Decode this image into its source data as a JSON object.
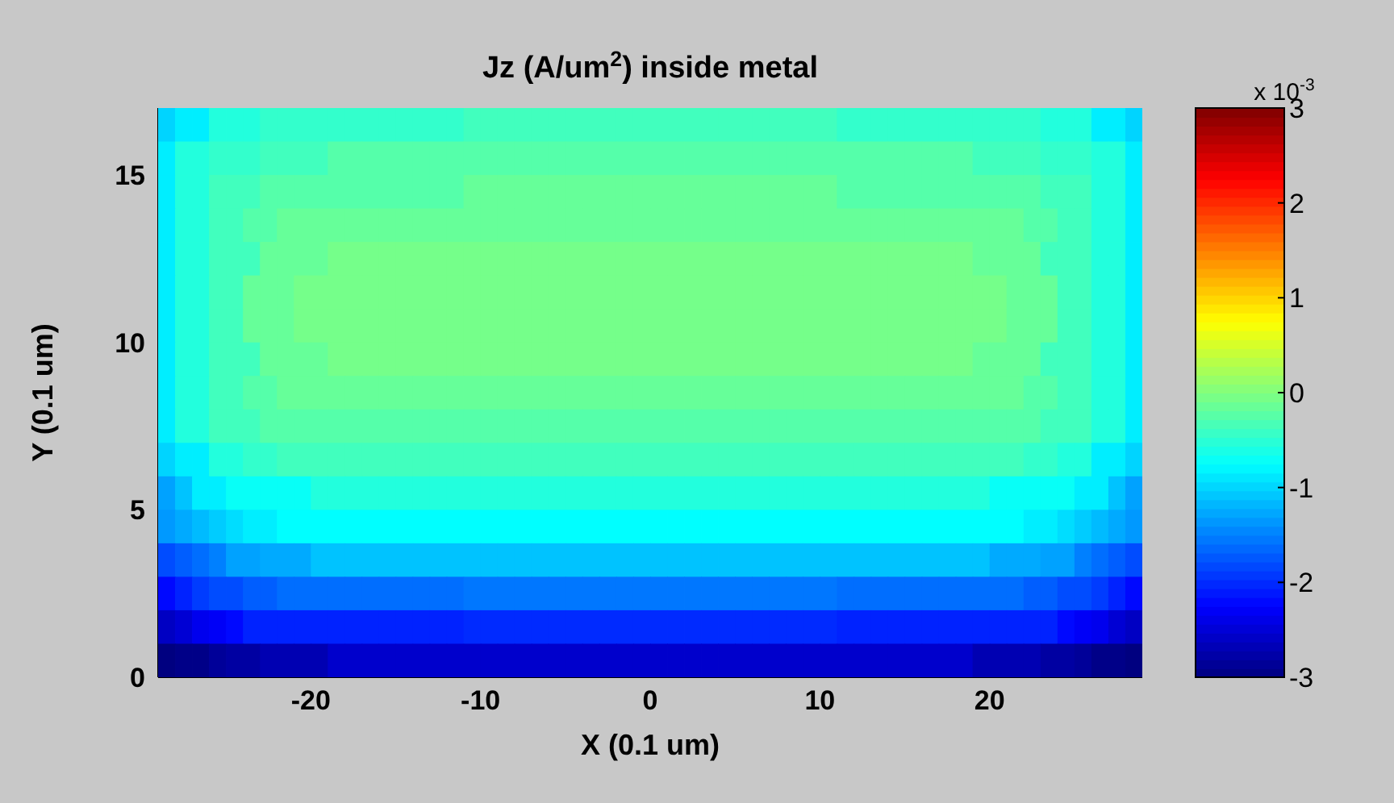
{
  "chart_data": {
    "type": "heatmap",
    "title": "Jz (A/um$^{2}$) inside metal",
    "xlabel": "X (0.1 um)",
    "ylabel": "Y (0.1 um)",
    "xlim": [
      -29,
      29
    ],
    "ylim": [
      0,
      17
    ],
    "xticks": [
      -20,
      -10,
      0,
      10,
      20
    ],
    "yticks": [
      0,
      5,
      10,
      15
    ],
    "clim": [
      -3,
      3
    ],
    "cticks": [
      -3,
      -2,
      -1,
      0,
      1,
      2,
      3
    ],
    "annotations": [
      "x 10$^{-3}$"
    ],
    "cells": [
      [
        -1,
        -0.85,
        -0.85,
        -0.55,
        -0.55,
        -0.55,
        -0.45,
        -0.45,
        -0.45,
        -0.45,
        -0.45,
        -0.45,
        -0.45,
        -0.45,
        -0.45,
        -0.45,
        -0.45,
        -0.45,
        -0.37,
        -0.37,
        -0.37,
        -0.37,
        -0.37,
        -0.37,
        -0.37,
        -0.37,
        -0.37,
        -0.37,
        -0.37,
        -0.37,
        -0.37,
        -0.37,
        -0.37,
        -0.37,
        -0.37,
        -0.37,
        -0.37,
        -0.37,
        -0.37,
        -0.37,
        -0.45,
        -0.45,
        -0.45,
        -0.45,
        -0.45,
        -0.45,
        -0.45,
        -0.45,
        -0.45,
        -0.45,
        -0.45,
        -0.45,
        -0.55,
        -0.55,
        -0.55,
        -0.85,
        -0.85,
        -1
      ],
      [
        -0.85,
        -0.55,
        -0.55,
        -0.45,
        -0.45,
        -0.45,
        -0.37,
        -0.37,
        -0.37,
        -0.37,
        -0.25,
        -0.25,
        -0.25,
        -0.25,
        -0.25,
        -0.25,
        -0.25,
        -0.25,
        -0.25,
        -0.25,
        -0.25,
        -0.25,
        -0.25,
        -0.25,
        -0.25,
        -0.25,
        -0.25,
        -0.25,
        -0.25,
        -0.25,
        -0.25,
        -0.25,
        -0.25,
        -0.25,
        -0.25,
        -0.25,
        -0.25,
        -0.25,
        -0.25,
        -0.25,
        -0.25,
        -0.25,
        -0.25,
        -0.25,
        -0.25,
        -0.25,
        -0.25,
        -0.25,
        -0.37,
        -0.37,
        -0.37,
        -0.37,
        -0.45,
        -0.45,
        -0.45,
        -0.55,
        -0.55,
        -0.85
      ],
      [
        -0.85,
        -0.55,
        -0.55,
        -0.37,
        -0.37,
        -0.37,
        -0.25,
        -0.25,
        -0.25,
        -0.25,
        -0.25,
        -0.25,
        -0.25,
        -0.25,
        -0.25,
        -0.25,
        -0.25,
        -0.25,
        -0.15,
        -0.15,
        -0.15,
        -0.15,
        -0.15,
        -0.15,
        -0.15,
        -0.15,
        -0.15,
        -0.15,
        -0.15,
        -0.15,
        -0.15,
        -0.15,
        -0.15,
        -0.15,
        -0.15,
        -0.15,
        -0.15,
        -0.15,
        -0.15,
        -0.15,
        -0.25,
        -0.25,
        -0.25,
        -0.25,
        -0.25,
        -0.25,
        -0.25,
        -0.25,
        -0.25,
        -0.25,
        -0.25,
        -0.25,
        -0.37,
        -0.37,
        -0.37,
        -0.55,
        -0.55,
        -0.85
      ],
      [
        -0.85,
        -0.55,
        -0.55,
        -0.37,
        -0.37,
        -0.25,
        -0.25,
        -0.15,
        -0.15,
        -0.15,
        -0.15,
        -0.15,
        -0.15,
        -0.15,
        -0.15,
        -0.15,
        -0.15,
        -0.15,
        -0.15,
        -0.15,
        -0.15,
        -0.15,
        -0.15,
        -0.15,
        -0.15,
        -0.15,
        -0.15,
        -0.15,
        -0.15,
        -0.15,
        -0.15,
        -0.15,
        -0.15,
        -0.15,
        -0.15,
        -0.15,
        -0.15,
        -0.15,
        -0.15,
        -0.15,
        -0.15,
        -0.15,
        -0.15,
        -0.15,
        -0.15,
        -0.15,
        -0.15,
        -0.15,
        -0.15,
        -0.15,
        -0.15,
        -0.25,
        -0.25,
        -0.37,
        -0.37,
        -0.55,
        -0.55,
        -0.85
      ],
      [
        -0.85,
        -0.55,
        -0.55,
        -0.37,
        -0.37,
        -0.37,
        -0.15,
        -0.15,
        -0.15,
        -0.15,
        -0.06,
        -0.06,
        -0.06,
        -0.06,
        -0.06,
        -0.06,
        -0.06,
        -0.06,
        -0.06,
        -0.06,
        -0.06,
        -0.06,
        -0.06,
        -0.06,
        -0.06,
        -0.06,
        -0.06,
        -0.06,
        -0.06,
        -0.06,
        -0.06,
        -0.06,
        -0.06,
        -0.06,
        -0.06,
        -0.06,
        -0.06,
        -0.06,
        -0.06,
        -0.06,
        -0.06,
        -0.06,
        -0.06,
        -0.06,
        -0.06,
        -0.06,
        -0.06,
        -0.06,
        -0.15,
        -0.15,
        -0.15,
        -0.15,
        -0.37,
        -0.37,
        -0.37,
        -0.55,
        -0.55,
        -0.85
      ],
      [
        -0.85,
        -0.55,
        -0.55,
        -0.37,
        -0.37,
        -0.15,
        -0.15,
        -0.15,
        -0.06,
        -0.06,
        -0.06,
        -0.06,
        -0.06,
        -0.06,
        -0.06,
        -0.06,
        -0.06,
        -0.06,
        -0.06,
        -0.06,
        -0.06,
        -0.06,
        -0.06,
        -0.06,
        -0.06,
        -0.06,
        -0.06,
        -0.06,
        -0.06,
        -0.06,
        -0.06,
        -0.06,
        -0.06,
        -0.06,
        -0.06,
        -0.06,
        -0.06,
        -0.06,
        -0.06,
        -0.06,
        -0.06,
        -0.06,
        -0.06,
        -0.06,
        -0.06,
        -0.06,
        -0.06,
        -0.06,
        -0.06,
        -0.06,
        -0.15,
        -0.15,
        -0.15,
        -0.37,
        -0.37,
        -0.55,
        -0.55,
        -0.85
      ],
      [
        -0.85,
        -0.55,
        -0.55,
        -0.37,
        -0.37,
        -0.15,
        -0.15,
        -0.15,
        -0.06,
        -0.06,
        -0.06,
        -0.06,
        -0.06,
        -0.06,
        -0.06,
        -0.06,
        -0.06,
        -0.06,
        -0.06,
        -0.06,
        -0.06,
        -0.06,
        -0.06,
        -0.06,
        -0.06,
        -0.06,
        -0.06,
        -0.06,
        -0.06,
        -0.06,
        -0.06,
        -0.06,
        -0.06,
        -0.06,
        -0.06,
        -0.06,
        -0.06,
        -0.06,
        -0.06,
        -0.06,
        -0.06,
        -0.06,
        -0.06,
        -0.06,
        -0.06,
        -0.06,
        -0.06,
        -0.06,
        -0.06,
        -0.06,
        -0.15,
        -0.15,
        -0.15,
        -0.37,
        -0.37,
        -0.55,
        -0.55,
        -0.85
      ],
      [
        -0.85,
        -0.55,
        -0.55,
        -0.37,
        -0.37,
        -0.37,
        -0.15,
        -0.15,
        -0.15,
        -0.15,
        -0.06,
        -0.06,
        -0.06,
        -0.06,
        -0.06,
        -0.06,
        -0.06,
        -0.06,
        -0.06,
        -0.06,
        -0.06,
        -0.06,
        -0.06,
        -0.06,
        -0.06,
        -0.06,
        -0.06,
        -0.06,
        -0.06,
        -0.06,
        -0.06,
        -0.06,
        -0.06,
        -0.06,
        -0.06,
        -0.06,
        -0.06,
        -0.06,
        -0.06,
        -0.06,
        -0.06,
        -0.06,
        -0.06,
        -0.06,
        -0.06,
        -0.06,
        -0.06,
        -0.06,
        -0.15,
        -0.15,
        -0.15,
        -0.15,
        -0.37,
        -0.37,
        -0.37,
        -0.55,
        -0.55,
        -0.85
      ],
      [
        -0.85,
        -0.55,
        -0.55,
        -0.37,
        -0.37,
        -0.25,
        -0.25,
        -0.15,
        -0.15,
        -0.15,
        -0.15,
        -0.15,
        -0.15,
        -0.15,
        -0.15,
        -0.15,
        -0.15,
        -0.15,
        -0.15,
        -0.15,
        -0.15,
        -0.15,
        -0.15,
        -0.15,
        -0.15,
        -0.15,
        -0.15,
        -0.15,
        -0.15,
        -0.15,
        -0.15,
        -0.15,
        -0.15,
        -0.15,
        -0.15,
        -0.15,
        -0.15,
        -0.15,
        -0.15,
        -0.15,
        -0.15,
        -0.15,
        -0.15,
        -0.15,
        -0.15,
        -0.15,
        -0.15,
        -0.15,
        -0.15,
        -0.15,
        -0.15,
        -0.25,
        -0.25,
        -0.37,
        -0.37,
        -0.55,
        -0.55,
        -0.85
      ],
      [
        -0.85,
        -0.55,
        -0.55,
        -0.37,
        -0.37,
        -0.37,
        -0.25,
        -0.25,
        -0.25,
        -0.25,
        -0.25,
        -0.25,
        -0.25,
        -0.25,
        -0.25,
        -0.25,
        -0.25,
        -0.25,
        -0.25,
        -0.25,
        -0.25,
        -0.25,
        -0.25,
        -0.25,
        -0.25,
        -0.25,
        -0.25,
        -0.25,
        -0.25,
        -0.25,
        -0.25,
        -0.25,
        -0.25,
        -0.25,
        -0.25,
        -0.25,
        -0.25,
        -0.25,
        -0.25,
        -0.25,
        -0.25,
        -0.25,
        -0.25,
        -0.25,
        -0.25,
        -0.25,
        -0.25,
        -0.25,
        -0.25,
        -0.25,
        -0.25,
        -0.25,
        -0.37,
        -0.37,
        -0.37,
        -0.55,
        -0.55,
        -0.85
      ],
      [
        -1,
        -0.85,
        -0.85,
        -0.55,
        -0.55,
        -0.45,
        -0.45,
        -0.37,
        -0.37,
        -0.37,
        -0.37,
        -0.37,
        -0.37,
        -0.37,
        -0.37,
        -0.37,
        -0.37,
        -0.37,
        -0.37,
        -0.37,
        -0.37,
        -0.37,
        -0.37,
        -0.37,
        -0.37,
        -0.37,
        -0.37,
        -0.37,
        -0.37,
        -0.37,
        -0.37,
        -0.37,
        -0.37,
        -0.37,
        -0.37,
        -0.37,
        -0.37,
        -0.37,
        -0.37,
        -0.37,
        -0.37,
        -0.37,
        -0.37,
        -0.37,
        -0.37,
        -0.37,
        -0.37,
        -0.37,
        -0.37,
        -0.37,
        -0.37,
        -0.45,
        -0.45,
        -0.55,
        -0.55,
        -0.85,
        -0.85,
        -1
      ],
      [
        -1.3,
        -1.1,
        -0.85,
        -0.85,
        -0.7,
        -0.7,
        -0.7,
        -0.7,
        -0.7,
        -0.55,
        -0.55,
        -0.55,
        -0.55,
        -0.55,
        -0.55,
        -0.55,
        -0.55,
        -0.55,
        -0.55,
        -0.55,
        -0.55,
        -0.55,
        -0.55,
        -0.55,
        -0.55,
        -0.55,
        -0.55,
        -0.55,
        -0.55,
        -0.55,
        -0.55,
        -0.55,
        -0.55,
        -0.55,
        -0.55,
        -0.55,
        -0.55,
        -0.55,
        -0.55,
        -0.55,
        -0.55,
        -0.55,
        -0.55,
        -0.55,
        -0.55,
        -0.55,
        -0.55,
        -0.55,
        -0.55,
        -0.7,
        -0.7,
        -0.7,
        -0.7,
        -0.7,
        -0.85,
        -0.85,
        -1.1,
        -1.3
      ],
      [
        -1.35,
        -1.25,
        -1.15,
        -1.05,
        -0.95,
        -0.85,
        -0.85,
        -0.75,
        -0.75,
        -0.75,
        -0.75,
        -0.75,
        -0.75,
        -0.75,
        -0.75,
        -0.75,
        -0.75,
        -0.75,
        -0.75,
        -0.75,
        -0.75,
        -0.75,
        -0.75,
        -0.75,
        -0.75,
        -0.75,
        -0.75,
        -0.75,
        -0.75,
        -0.75,
        -0.75,
        -0.75,
        -0.75,
        -0.75,
        -0.75,
        -0.75,
        -0.75,
        -0.75,
        -0.75,
        -0.75,
        -0.75,
        -0.75,
        -0.75,
        -0.75,
        -0.75,
        -0.75,
        -0.75,
        -0.75,
        -0.75,
        -0.75,
        -0.75,
        -0.85,
        -0.85,
        -0.95,
        -1.05,
        -1.15,
        -1.25,
        -1.35
      ],
      [
        -1.8,
        -1.7,
        -1.6,
        -1.5,
        -1.3,
        -1.3,
        -1.25,
        -1.25,
        -1.25,
        -1.1,
        -1.1,
        -1.1,
        -1.1,
        -1.1,
        -1.1,
        -1.1,
        -1.1,
        -1.1,
        -1.1,
        -1.1,
        -1.1,
        -1.1,
        -1.1,
        -1.1,
        -1.1,
        -1.1,
        -1.1,
        -1.1,
        -1.1,
        -1.1,
        -1.1,
        -1.1,
        -1.1,
        -1.1,
        -1.1,
        -1.1,
        -1.1,
        -1.1,
        -1.1,
        -1.1,
        -1.1,
        -1.1,
        -1.1,
        -1.1,
        -1.1,
        -1.1,
        -1.1,
        -1.1,
        -1.1,
        -1.25,
        -1.25,
        -1.25,
        -1.3,
        -1.3,
        -1.5,
        -1.6,
        -1.7,
        -1.8
      ],
      [
        -2.2,
        -2.05,
        -1.9,
        -1.8,
        -1.8,
        -1.7,
        -1.7,
        -1.6,
        -1.6,
        -1.6,
        -1.6,
        -1.6,
        -1.6,
        -1.6,
        -1.6,
        -1.6,
        -1.6,
        -1.6,
        -1.55,
        -1.55,
        -1.55,
        -1.55,
        -1.55,
        -1.55,
        -1.55,
        -1.55,
        -1.55,
        -1.55,
        -1.55,
        -1.55,
        -1.55,
        -1.55,
        -1.55,
        -1.55,
        -1.55,
        -1.55,
        -1.55,
        -1.55,
        -1.55,
        -1.55,
        -1.6,
        -1.6,
        -1.6,
        -1.6,
        -1.6,
        -1.6,
        -1.6,
        -1.6,
        -1.6,
        -1.6,
        -1.6,
        -1.7,
        -1.7,
        -1.8,
        -1.8,
        -1.9,
        -2.05,
        -2.2
      ],
      [
        -2.6,
        -2.5,
        -2.35,
        -2.3,
        -2.2,
        -2.05,
        -2.05,
        -2.05,
        -2.05,
        -2.05,
        -2.05,
        -2.05,
        -2.05,
        -2.05,
        -2.05,
        -2.05,
        -2.05,
        -2.05,
        -2,
        -2,
        -2,
        -2,
        -2,
        -2,
        -2,
        -2,
        -2,
        -2,
        -2,
        -2,
        -2,
        -2,
        -2,
        -2,
        -2,
        -2,
        -2,
        -2,
        -2,
        -2,
        -2.05,
        -2.05,
        -2.05,
        -2.05,
        -2.05,
        -2.05,
        -2.05,
        -2.05,
        -2.05,
        -2.05,
        -2.05,
        -2.05,
        -2.05,
        -2.2,
        -2.3,
        -2.35,
        -2.5,
        -2.6
      ],
      [
        -3,
        -2.95,
        -2.95,
        -2.85,
        -2.8,
        -2.8,
        -2.7,
        -2.7,
        -2.7,
        -2.7,
        -2.55,
        -2.55,
        -2.55,
        -2.55,
        -2.55,
        -2.55,
        -2.55,
        -2.55,
        -2.55,
        -2.55,
        -2.55,
        -2.55,
        -2.55,
        -2.55,
        -2.55,
        -2.55,
        -2.55,
        -2.55,
        -2.55,
        -2.55,
        -2.55,
        -2.55,
        -2.55,
        -2.55,
        -2.55,
        -2.55,
        -2.55,
        -2.55,
        -2.55,
        -2.55,
        -2.55,
        -2.55,
        -2.55,
        -2.55,
        -2.55,
        -2.55,
        -2.55,
        -2.55,
        -2.7,
        -2.7,
        -2.7,
        -2.7,
        -2.8,
        -2.8,
        -2.85,
        -2.95,
        -2.95,
        -3
      ]
    ]
  }
}
